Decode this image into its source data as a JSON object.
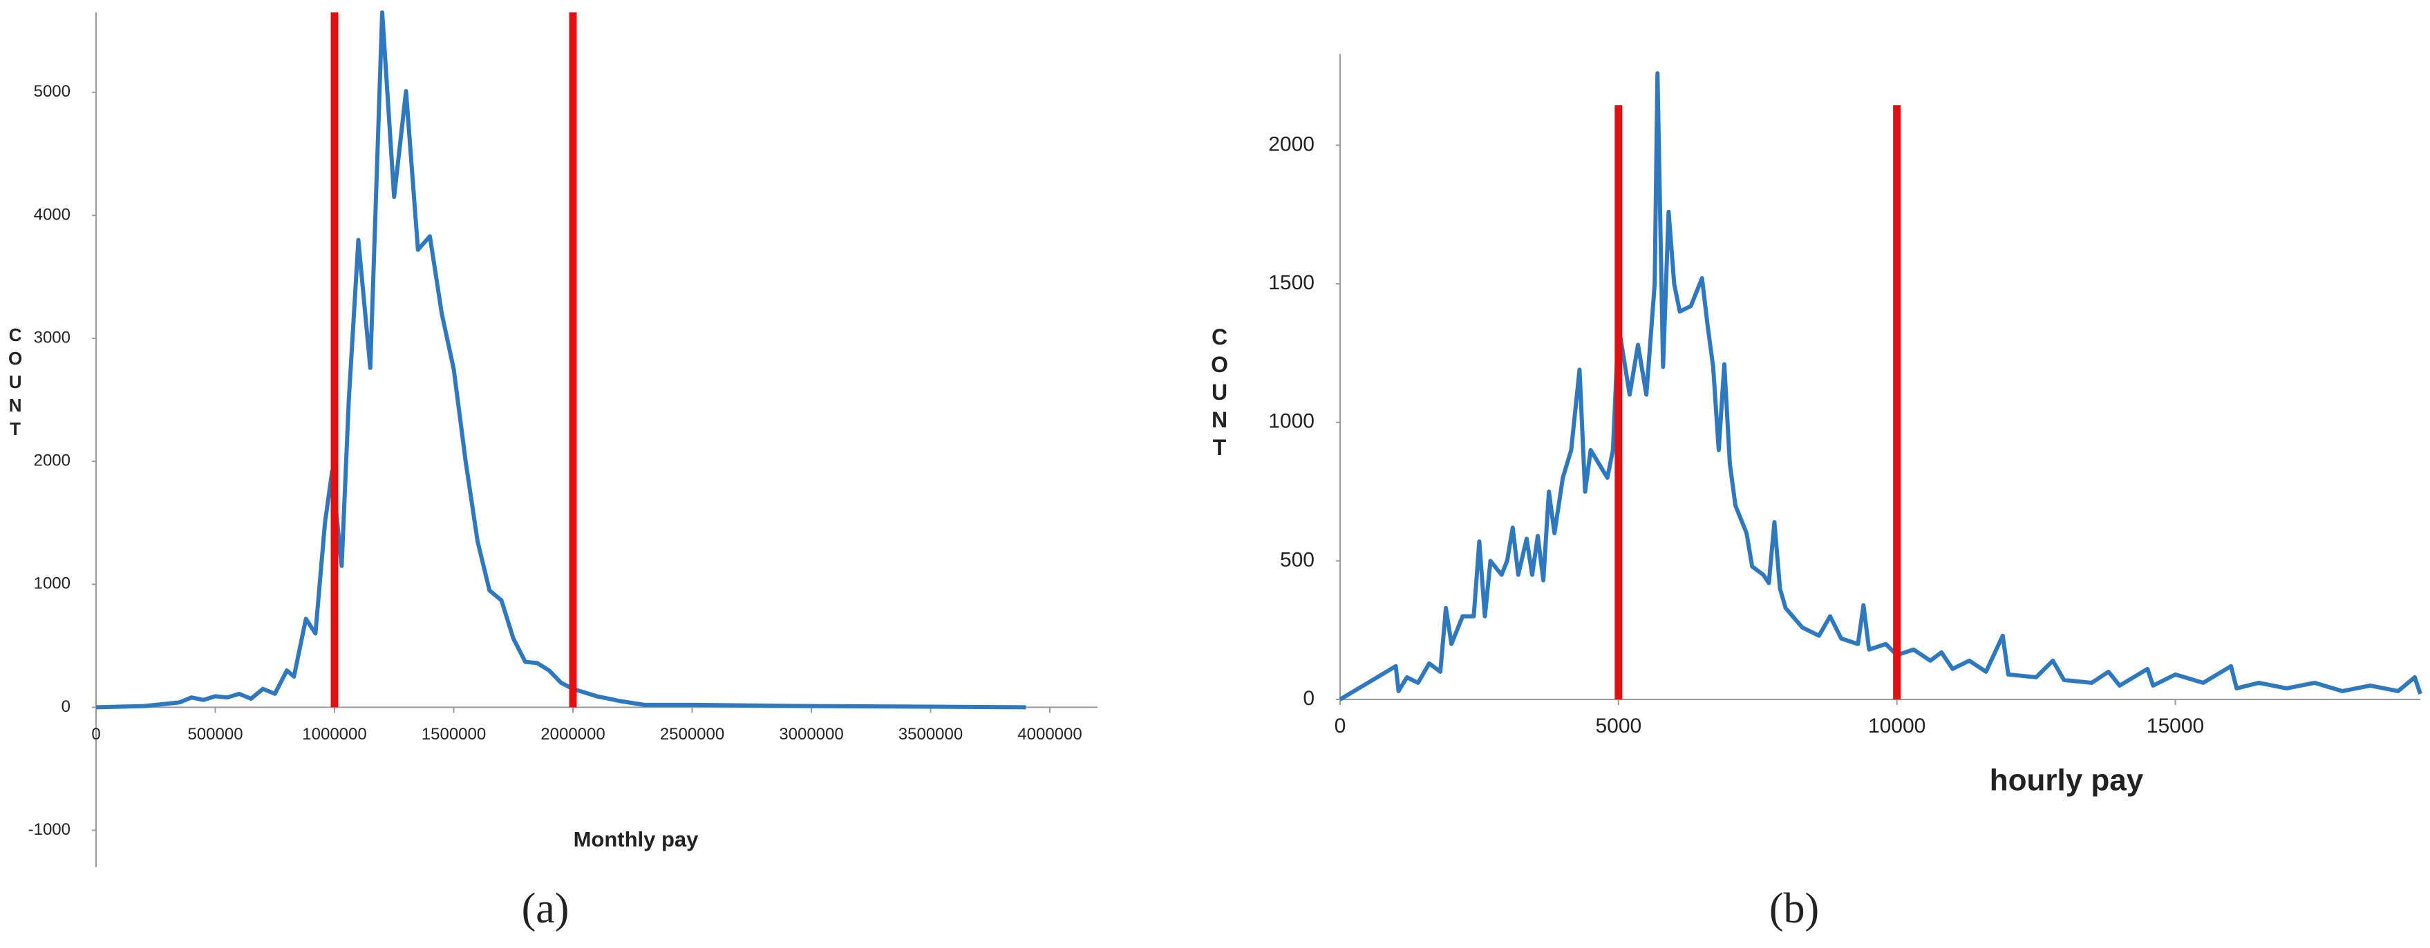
{
  "chart_data": [
    {
      "type": "line",
      "caption": "(a)",
      "xlabel": "Monthly pay",
      "ylabel": "COUNT",
      "color": "#2e78c0",
      "x": [
        0,
        200000,
        350000,
        400000,
        450000,
        500000,
        550000,
        600000,
        650000,
        700000,
        750000,
        800000,
        830000,
        880000,
        920000,
        960000,
        990000,
        1030000,
        1060000,
        1100000,
        1150000,
        1200000,
        1250000,
        1300000,
        1350000,
        1400000,
        1450000,
        1500000,
        1550000,
        1600000,
        1650000,
        1700000,
        1750000,
        1800000,
        1850000,
        1900000,
        1950000,
        2000000,
        2100000,
        2200000,
        2300000,
        2500000,
        3000000,
        3500000,
        3900000
      ],
      "values": [
        0,
        10,
        40,
        80,
        60,
        90,
        80,
        110,
        70,
        150,
        110,
        300,
        250,
        720,
        600,
        1500,
        1920,
        1150,
        2500,
        3800,
        2760,
        5650,
        4150,
        5010,
        3720,
        3830,
        3200,
        2750,
        2000,
        1350,
        950,
        870,
        560,
        370,
        360,
        300,
        200,
        150,
        90,
        50,
        20,
        20,
        10,
        5,
        0
      ],
      "xlim": [
        0,
        4200000
      ],
      "ylim": [
        -1300,
        5650
      ],
      "xticks": [
        0,
        500000,
        1000000,
        1500000,
        2000000,
        2500000,
        3000000,
        3500000,
        4000000
      ],
      "yticks": [
        -1000,
        0,
        1000,
        2000,
        3000,
        4000,
        5000
      ],
      "vlines": {
        "color": "#e01010",
        "x": [
          1000000,
          2000000
        ],
        "top": 5650
      }
    },
    {
      "type": "line",
      "caption": "(b)",
      "xlabel": "hourly pay",
      "ylabel": "COUNT",
      "color": "#2e78c0",
      "x": [
        0,
        500,
        1000,
        1050,
        1200,
        1400,
        1600,
        1800,
        1900,
        2000,
        2200,
        2400,
        2500,
        2600,
        2700,
        2900,
        3000,
        3100,
        3200,
        3350,
        3450,
        3550,
        3650,
        3750,
        3850,
        4000,
        4150,
        4300,
        4400,
        4500,
        4650,
        4800,
        4900,
        5000,
        5200,
        5350,
        5500,
        5650,
        5700,
        5800,
        5900,
        6000,
        6100,
        6300,
        6500,
        6600,
        6700,
        6800,
        6900,
        7000,
        7100,
        7300,
        7400,
        7600,
        7700,
        7800,
        7900,
        8000,
        8300,
        8600,
        8800,
        9000,
        9300,
        9400,
        9500,
        9800,
        10000,
        10300,
        10600,
        10800,
        11000,
        11300,
        11600,
        11900,
        12000,
        12500,
        12800,
        13000,
        13500,
        13800,
        14000,
        14500,
        14600,
        15000,
        15500,
        16000,
        16100,
        16500,
        17000,
        17500,
        18000,
        18500,
        19000,
        19300,
        19400
      ],
      "values": [
        0,
        60,
        120,
        30,
        80,
        60,
        130,
        100,
        330,
        200,
        300,
        300,
        570,
        300,
        500,
        450,
        500,
        620,
        450,
        580,
        450,
        590,
        430,
        750,
        600,
        800,
        900,
        1190,
        750,
        900,
        850,
        800,
        900,
        1350,
        1100,
        1280,
        1100,
        1500,
        2260,
        1200,
        1760,
        1500,
        1400,
        1420,
        1520,
        1350,
        1200,
        900,
        1210,
        850,
        700,
        600,
        480,
        450,
        420,
        640,
        400,
        330,
        260,
        230,
        300,
        220,
        200,
        340,
        180,
        200,
        160,
        180,
        140,
        170,
        110,
        140,
        100,
        230,
        90,
        80,
        140,
        70,
        60,
        100,
        50,
        110,
        50,
        90,
        60,
        120,
        40,
        60,
        40,
        60,
        30,
        50,
        30,
        80,
        20
      ],
      "xlim": [
        0,
        19400
      ],
      "ylim": [
        0,
        2330
      ],
      "xticks": [
        0,
        5000,
        10000,
        15000
      ],
      "yticks": [
        0,
        500,
        1000,
        1500,
        2000
      ],
      "vlines": {
        "color": "#e01010",
        "x": [
          5000,
          10000
        ],
        "top": 2145
      }
    }
  ]
}
